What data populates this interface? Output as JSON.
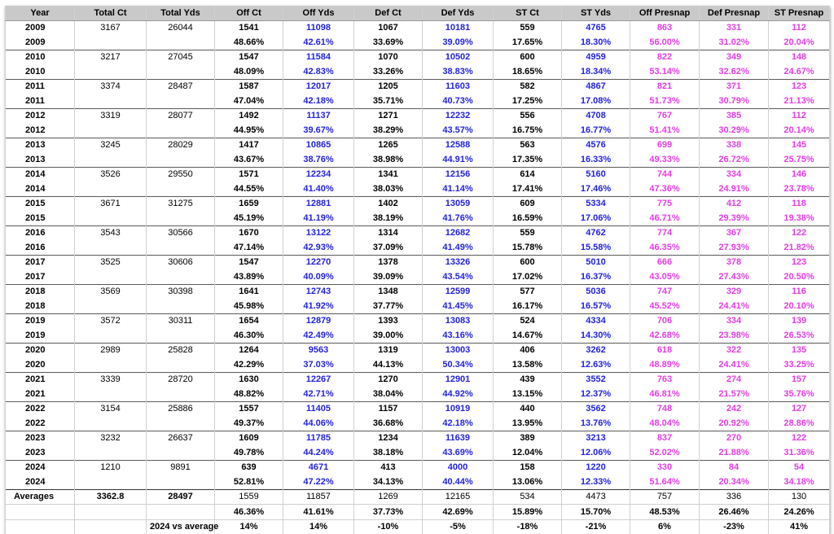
{
  "headers": [
    "Year",
    "Total Ct",
    "Total Yds",
    "Off Ct",
    "Off Yds",
    "Def Ct",
    "Def Yds",
    "ST Ct",
    "ST Yds",
    "Off Presnap",
    "Def Presnap",
    "ST Presnap"
  ],
  "rows": [
    {
      "year": "2009",
      "total_ct": "3167",
      "total_yds": "26044",
      "off_ct": "1541",
      "off_yds": "11098",
      "def_ct": "1067",
      "def_yds": "10181",
      "st_ct": "559",
      "st_yds": "4765",
      "off_presnap": "863",
      "def_presnap": "331",
      "st_presnap": "112",
      "pct": {
        "off_ct": "48.66%",
        "off_yds": "42.61%",
        "def_ct": "33.69%",
        "def_yds": "39.09%",
        "st_ct": "17.65%",
        "st_yds": "18.30%",
        "off_presnap": "56.00%",
        "def_presnap": "31.02%",
        "st_presnap": "20.04%"
      }
    },
    {
      "year": "2010",
      "total_ct": "3217",
      "total_yds": "27045",
      "off_ct": "1547",
      "off_yds": "11584",
      "def_ct": "1070",
      "def_yds": "10502",
      "st_ct": "600",
      "st_yds": "4959",
      "off_presnap": "822",
      "def_presnap": "349",
      "st_presnap": "148",
      "pct": {
        "off_ct": "48.09%",
        "off_yds": "42.83%",
        "def_ct": "33.26%",
        "def_yds": "38.83%",
        "st_ct": "18.65%",
        "st_yds": "18.34%",
        "off_presnap": "53.14%",
        "def_presnap": "32.62%",
        "st_presnap": "24.67%"
      }
    },
    {
      "year": "2011",
      "total_ct": "3374",
      "total_yds": "28487",
      "off_ct": "1587",
      "off_yds": "12017",
      "def_ct": "1205",
      "def_yds": "11603",
      "st_ct": "582",
      "st_yds": "4867",
      "off_presnap": "821",
      "def_presnap": "371",
      "st_presnap": "123",
      "pct": {
        "off_ct": "47.04%",
        "off_yds": "42.18%",
        "def_ct": "35.71%",
        "def_yds": "40.73%",
        "st_ct": "17.25%",
        "st_yds": "17.08%",
        "off_presnap": "51.73%",
        "def_presnap": "30.79%",
        "st_presnap": "21.13%"
      }
    },
    {
      "year": "2012",
      "total_ct": "3319",
      "total_yds": "28077",
      "off_ct": "1492",
      "off_yds": "11137",
      "def_ct": "1271",
      "def_yds": "12232",
      "st_ct": "556",
      "st_yds": "4708",
      "off_presnap": "767",
      "def_presnap": "385",
      "st_presnap": "112",
      "pct": {
        "off_ct": "44.95%",
        "off_yds": "39.67%",
        "def_ct": "38.29%",
        "def_yds": "43.57%",
        "st_ct": "16.75%",
        "st_yds": "16.77%",
        "off_presnap": "51.41%",
        "def_presnap": "30.29%",
        "st_presnap": "20.14%"
      }
    },
    {
      "year": "2013",
      "total_ct": "3245",
      "total_yds": "28029",
      "off_ct": "1417",
      "off_yds": "10865",
      "def_ct": "1265",
      "def_yds": "12588",
      "st_ct": "563",
      "st_yds": "4576",
      "off_presnap": "699",
      "def_presnap": "338",
      "st_presnap": "145",
      "pct": {
        "off_ct": "43.67%",
        "off_yds": "38.76%",
        "def_ct": "38.98%",
        "def_yds": "44.91%",
        "st_ct": "17.35%",
        "st_yds": "16.33%",
        "off_presnap": "49.33%",
        "def_presnap": "26.72%",
        "st_presnap": "25.75%"
      }
    },
    {
      "year": "2014",
      "total_ct": "3526",
      "total_yds": "29550",
      "off_ct": "1571",
      "off_yds": "12234",
      "def_ct": "1341",
      "def_yds": "12156",
      "st_ct": "614",
      "st_yds": "5160",
      "off_presnap": "744",
      "def_presnap": "334",
      "st_presnap": "146",
      "pct": {
        "off_ct": "44.55%",
        "off_yds": "41.40%",
        "def_ct": "38.03%",
        "def_yds": "41.14%",
        "st_ct": "17.41%",
        "st_yds": "17.46%",
        "off_presnap": "47.36%",
        "def_presnap": "24.91%",
        "st_presnap": "23.78%"
      }
    },
    {
      "year": "2015",
      "total_ct": "3671",
      "total_yds": "31275",
      "off_ct": "1659",
      "off_yds": "12881",
      "def_ct": "1402",
      "def_yds": "13059",
      "st_ct": "609",
      "st_yds": "5334",
      "off_presnap": "775",
      "def_presnap": "412",
      "st_presnap": "118",
      "pct": {
        "off_ct": "45.19%",
        "off_yds": "41.19%",
        "def_ct": "38.19%",
        "def_yds": "41.76%",
        "st_ct": "16.59%",
        "st_yds": "17.06%",
        "off_presnap": "46.71%",
        "def_presnap": "29.39%",
        "st_presnap": "19.38%"
      }
    },
    {
      "year": "2016",
      "total_ct": "3543",
      "total_yds": "30566",
      "off_ct": "1670",
      "off_yds": "13122",
      "def_ct": "1314",
      "def_yds": "12682",
      "st_ct": "559",
      "st_yds": "4762",
      "off_presnap": "774",
      "def_presnap": "367",
      "st_presnap": "122",
      "pct": {
        "off_ct": "47.14%",
        "off_yds": "42.93%",
        "def_ct": "37.09%",
        "def_yds": "41.49%",
        "st_ct": "15.78%",
        "st_yds": "15.58%",
        "off_presnap": "46.35%",
        "def_presnap": "27.93%",
        "st_presnap": "21.82%"
      }
    },
    {
      "year": "2017",
      "total_ct": "3525",
      "total_yds": "30606",
      "off_ct": "1547",
      "off_yds": "12270",
      "def_ct": "1378",
      "def_yds": "13326",
      "st_ct": "600",
      "st_yds": "5010",
      "off_presnap": "666",
      "def_presnap": "378",
      "st_presnap": "123",
      "pct": {
        "off_ct": "43.89%",
        "off_yds": "40.09%",
        "def_ct": "39.09%",
        "def_yds": "43.54%",
        "st_ct": "17.02%",
        "st_yds": "16.37%",
        "off_presnap": "43.05%",
        "def_presnap": "27.43%",
        "st_presnap": "20.50%"
      }
    },
    {
      "year": "2018",
      "total_ct": "3569",
      "total_yds": "30398",
      "off_ct": "1641",
      "off_yds": "12743",
      "def_ct": "1348",
      "def_yds": "12599",
      "st_ct": "577",
      "st_yds": "5036",
      "off_presnap": "747",
      "def_presnap": "329",
      "st_presnap": "116",
      "pct": {
        "off_ct": "45.98%",
        "off_yds": "41.92%",
        "def_ct": "37.77%",
        "def_yds": "41.45%",
        "st_ct": "16.17%",
        "st_yds": "16.57%",
        "off_presnap": "45.52%",
        "def_presnap": "24.41%",
        "st_presnap": "20.10%"
      }
    },
    {
      "year": "2019",
      "total_ct": "3572",
      "total_yds": "30311",
      "off_ct": "1654",
      "off_yds": "12879",
      "def_ct": "1393",
      "def_yds": "13083",
      "st_ct": "524",
      "st_yds": "4334",
      "off_presnap": "706",
      "def_presnap": "334",
      "st_presnap": "139",
      "pct": {
        "off_ct": "46.30%",
        "off_yds": "42.49%",
        "def_ct": "39.00%",
        "def_yds": "43.16%",
        "st_ct": "14.67%",
        "st_yds": "14.30%",
        "off_presnap": "42.68%",
        "def_presnap": "23.98%",
        "st_presnap": "26.53%"
      }
    },
    {
      "year": "2020",
      "total_ct": "2989",
      "total_yds": "25828",
      "off_ct": "1264",
      "off_yds": "9563",
      "def_ct": "1319",
      "def_yds": "13003",
      "st_ct": "406",
      "st_yds": "3262",
      "off_presnap": "618",
      "def_presnap": "322",
      "st_presnap": "135",
      "pct": {
        "off_ct": "42.29%",
        "off_yds": "37.03%",
        "def_ct": "44.13%",
        "def_yds": "50.34%",
        "st_ct": "13.58%",
        "st_yds": "12.63%",
        "off_presnap": "48.89%",
        "def_presnap": "24.41%",
        "st_presnap": "33.25%"
      }
    },
    {
      "year": "2021",
      "total_ct": "3339",
      "total_yds": "28720",
      "off_ct": "1630",
      "off_yds": "12267",
      "def_ct": "1270",
      "def_yds": "12901",
      "st_ct": "439",
      "st_yds": "3552",
      "off_presnap": "763",
      "def_presnap": "274",
      "st_presnap": "157",
      "pct": {
        "off_ct": "48.82%",
        "off_yds": "42.71%",
        "def_ct": "38.04%",
        "def_yds": "44.92%",
        "st_ct": "13.15%",
        "st_yds": "12.37%",
        "off_presnap": "46.81%",
        "def_presnap": "21.57%",
        "st_presnap": "35.76%"
      }
    },
    {
      "year": "2022",
      "total_ct": "3154",
      "total_yds": "25886",
      "off_ct": "1557",
      "off_yds": "11405",
      "def_ct": "1157",
      "def_yds": "10919",
      "st_ct": "440",
      "st_yds": "3562",
      "off_presnap": "748",
      "def_presnap": "242",
      "st_presnap": "127",
      "pct": {
        "off_ct": "49.37%",
        "off_yds": "44.06%",
        "def_ct": "36.68%",
        "def_yds": "42.18%",
        "st_ct": "13.95%",
        "st_yds": "13.76%",
        "off_presnap": "48.04%",
        "def_presnap": "20.92%",
        "st_presnap": "28.86%"
      }
    },
    {
      "year": "2023",
      "total_ct": "3232",
      "total_yds": "26637",
      "off_ct": "1609",
      "off_yds": "11785",
      "def_ct": "1234",
      "def_yds": "11639",
      "st_ct": "389",
      "st_yds": "3213",
      "off_presnap": "837",
      "def_presnap": "270",
      "st_presnap": "122",
      "pct": {
        "off_ct": "49.78%",
        "off_yds": "44.24%",
        "def_ct": "38.18%",
        "def_yds": "43.69%",
        "st_ct": "12.04%",
        "st_yds": "12.06%",
        "off_presnap": "52.02%",
        "def_presnap": "21.88%",
        "st_presnap": "31.36%"
      }
    },
    {
      "year": "2024",
      "total_ct": "1210",
      "total_yds": "9891",
      "off_ct": "639",
      "off_yds": "4671",
      "def_ct": "413",
      "def_yds": "4000",
      "st_ct": "158",
      "st_yds": "1220",
      "off_presnap": "330",
      "def_presnap": "84",
      "st_presnap": "54",
      "pct": {
        "off_ct": "52.81%",
        "off_yds": "47.22%",
        "def_ct": "34.13%",
        "def_yds": "40.44%",
        "st_ct": "13.06%",
        "st_yds": "12.33%",
        "off_presnap": "51.64%",
        "def_presnap": "20.34%",
        "st_presnap": "34.18%"
      }
    }
  ],
  "averages": {
    "label": "Averages",
    "total_ct": "3362.8",
    "total_yds": "28497",
    "off_ct": "1559",
    "off_yds": "11857",
    "def_ct": "1269",
    "def_yds": "12165",
    "st_ct": "534",
    "st_yds": "4473",
    "off_presnap": "757",
    "def_presnap": "336",
    "st_presnap": "130",
    "pct": {
      "off_ct": "46.36%",
      "off_yds": "41.61%",
      "def_ct": "37.73%",
      "def_yds": "42.69%",
      "st_ct": "15.89%",
      "st_yds": "15.70%",
      "off_presnap": "48.53%",
      "def_presnap": "26.46%",
      "st_presnap": "24.26%"
    }
  },
  "vs_average": {
    "label": "2024 vs average",
    "off_ct": "14%",
    "off_yds": "14%",
    "def_ct": "-10%",
    "def_yds": "-5%",
    "st_ct": "-18%",
    "st_yds": "-21%",
    "off_presnap": "6%",
    "def_presnap": "-23%",
    "st_presnap": "41%"
  },
  "colors": {
    "header_bg": "#c9c9c9",
    "yards_blue": "#2323e0",
    "presnap_pink": "#e23ee2"
  }
}
